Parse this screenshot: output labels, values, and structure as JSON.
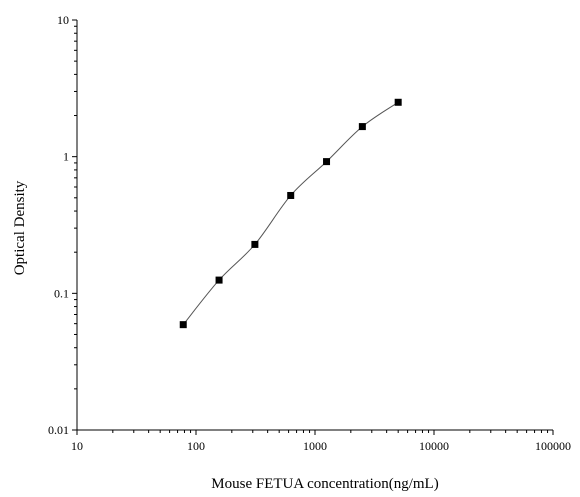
{
  "chart_data": {
    "type": "scatter",
    "title": "",
    "xlabel": "Mouse FETUA concentration(ng/mL)",
    "ylabel": "Optical Density",
    "x_scale": "log",
    "y_scale": "log",
    "xlim": [
      10,
      100000
    ],
    "ylim": [
      0.01,
      10
    ],
    "x_ticks": [
      10,
      100,
      1000,
      10000,
      100000
    ],
    "x_tick_labels": [
      "10",
      "100",
      "1000",
      "10000",
      "100000"
    ],
    "y_ticks": [
      0.01,
      0.1,
      1,
      10
    ],
    "y_tick_labels": [
      "0.01",
      "0.1",
      "1",
      "10"
    ],
    "grid": false,
    "legend": "none",
    "series": [
      {
        "marker": "square",
        "line": "fitted-curve",
        "color": "#000000",
        "line_color": "#555555",
        "x": [
          78.125,
          156.25,
          312.5,
          625,
          1250,
          2500,
          5000
        ],
        "y": [
          0.059,
          0.125,
          0.228,
          0.52,
          0.92,
          1.66,
          2.5
        ]
      }
    ]
  }
}
